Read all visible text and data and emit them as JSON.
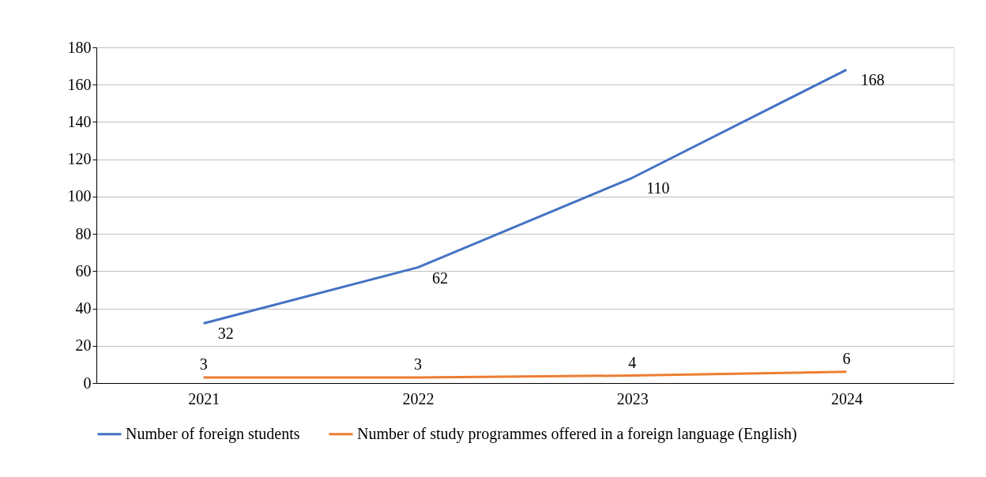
{
  "chart_data": {
    "type": "line",
    "categories": [
      "2021",
      "2022",
      "2023",
      "2024"
    ],
    "series": [
      {
        "name": "Number of foreign students",
        "color": "#4472c4",
        "values": [
          32,
          62,
          110,
          168
        ]
      },
      {
        "name": "Number of study programmes offered in a foreign language (English)",
        "color": "#ed7d31",
        "values": [
          3,
          3,
          4,
          6
        ]
      }
    ],
    "ylim": [
      0,
      180
    ],
    "yticks": [
      0,
      20,
      40,
      60,
      80,
      100,
      120,
      140,
      160,
      180
    ],
    "grid": "y",
    "legend": "bottom",
    "data_labels": true,
    "marker": "none",
    "line_style": "solid"
  }
}
